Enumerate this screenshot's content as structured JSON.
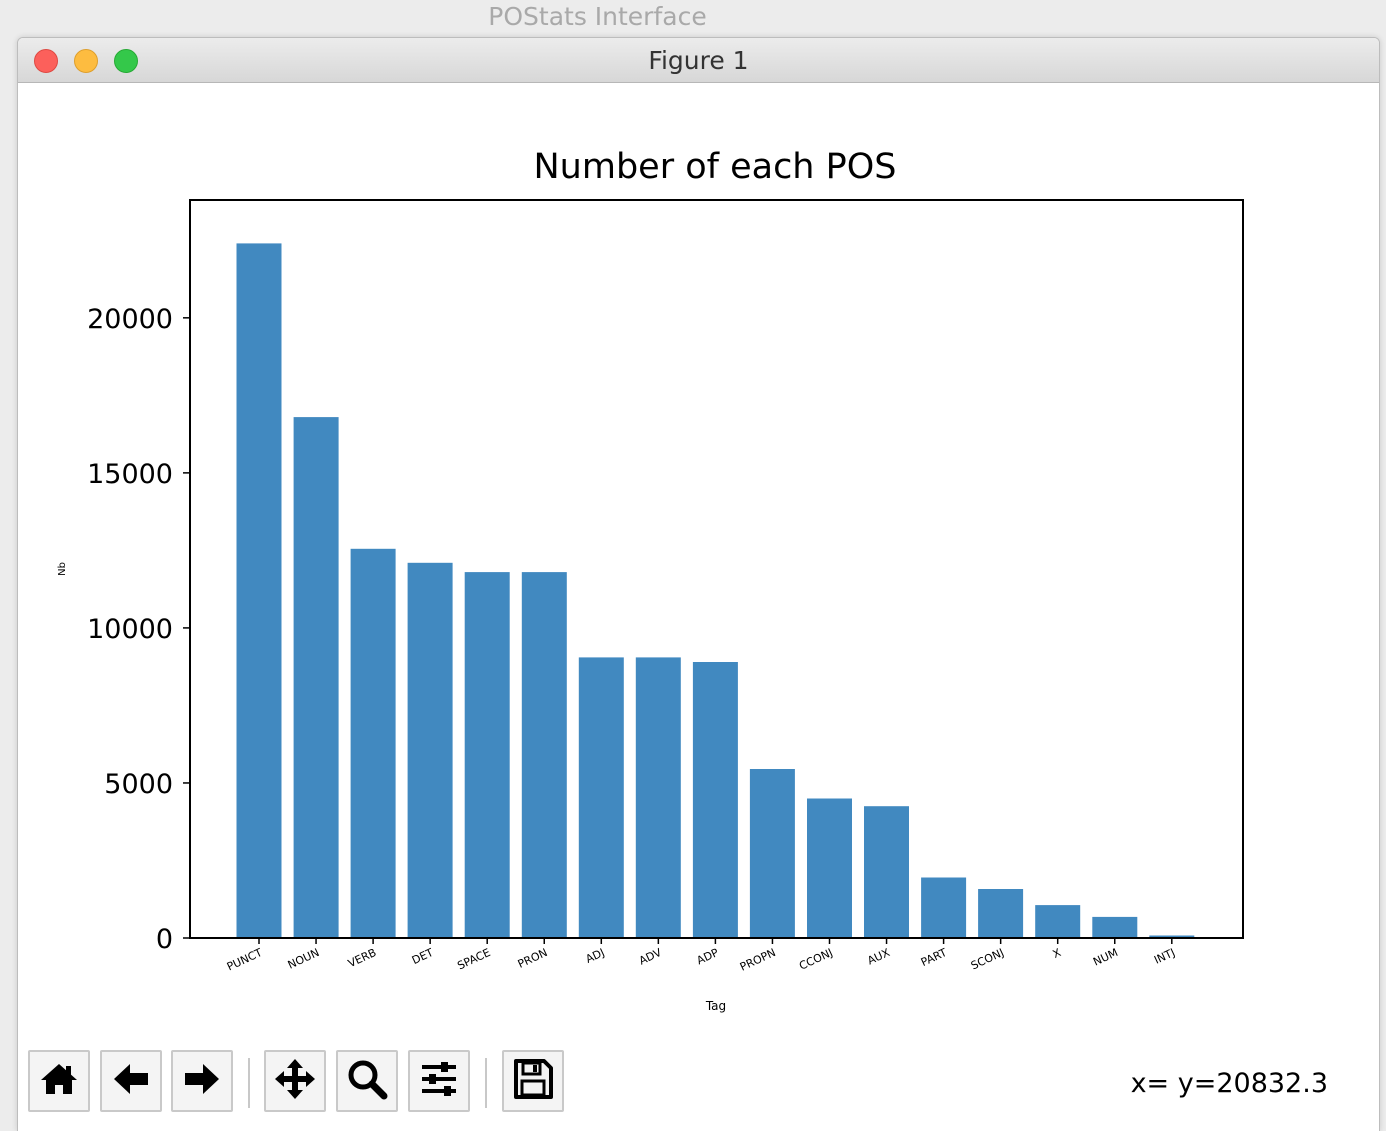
{
  "app": {
    "title": "POStats Interface"
  },
  "window": {
    "title": "Figure 1"
  },
  "chart_data": {
    "type": "bar",
    "title": "Number of each POS",
    "xlabel": "Tag",
    "ylabel": "Nb",
    "categories": [
      "PUNCT",
      "NOUN",
      "VERB",
      "DET",
      "SPACE",
      "PRON",
      "ADJ",
      "ADV",
      "ADP",
      "PROPN",
      "CCONJ",
      "AUX",
      "PART",
      "SCONJ",
      "X",
      "NUM",
      "INTJ"
    ],
    "values": [
      22400,
      16800,
      12550,
      12100,
      11800,
      11800,
      9050,
      9050,
      8900,
      5450,
      4500,
      4250,
      1950,
      1580,
      1060,
      680,
      80
    ],
    "ylim": [
      0,
      23800
    ],
    "yticks": [
      0,
      5000,
      10000,
      15000,
      20000
    ],
    "bar_color": "#4189c0",
    "grid": false
  },
  "toolbar": {
    "buttons": [
      {
        "icon": "home-icon"
      },
      {
        "icon": "back-arrow-icon"
      },
      {
        "icon": "forward-arrow-icon"
      },
      {
        "icon": "pan-move-icon"
      },
      {
        "icon": "zoom-magnifier-icon"
      },
      {
        "icon": "configure-subplots-icon"
      },
      {
        "icon": "save-floppy-icon"
      }
    ]
  },
  "status": {
    "coords": "x= y=20832.3"
  }
}
